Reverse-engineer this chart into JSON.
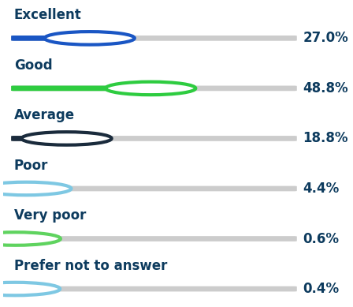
{
  "categories": [
    "Excellent",
    "Good",
    "Average",
    "Poor",
    "Very poor",
    "Prefer not to answer"
  ],
  "values": [
    27.0,
    48.8,
    18.8,
    4.4,
    0.6,
    0.4
  ],
  "max_value": 100.0,
  "track_color": "#cccccc",
  "fill_colors": [
    "#1a56c4",
    "#2ecc40",
    "#1a2b3c",
    "#7ec8e3",
    "#5fd35f",
    "#7ec8e3"
  ],
  "circle_edge_colors": [
    "#1a56c4",
    "#2ecc40",
    "#1a2b3c",
    "#7ec8e3",
    "#5fd35f",
    "#7ec8e3"
  ],
  "label_color": "#0d3b5e",
  "pct_bold_color": "#0d3b5e",
  "pct_light_color": "#0d3b5e",
  "background_color": "#ffffff",
  "label_fontsize": 12,
  "pct_fontsize": 12
}
